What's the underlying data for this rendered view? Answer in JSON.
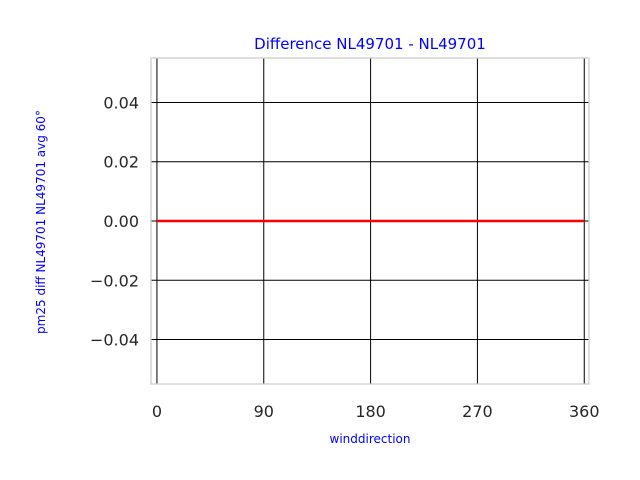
{
  "chart_data": {
    "type": "line",
    "title": "Difference NL49701 - NL49701",
    "xlabel": "winddirection",
    "ylabel": "pm25 diff NL49701 NL49701 avg 60°",
    "xlim": [
      -5,
      364
    ],
    "ylim": [
      -0.055,
      0.055
    ],
    "xticks": [
      0,
      90,
      180,
      270,
      360
    ],
    "xtick_labels": [
      "0",
      "90",
      "180",
      "270",
      "360"
    ],
    "yticks": [
      0.04,
      0.02,
      0.0,
      -0.02,
      -0.04
    ],
    "ytick_labels": [
      "0.04",
      "0.02",
      "0.00",
      "−0.02",
      "−0.04"
    ],
    "grid": true,
    "series": [
      {
        "color": "#ff0000",
        "x": [
          0,
          30,
          60,
          90,
          120,
          150,
          180,
          210,
          240,
          270,
          300,
          330,
          360
        ],
        "y": [
          0,
          0,
          0,
          0,
          0,
          0,
          0,
          0,
          0,
          0,
          0,
          0,
          0
        ]
      }
    ]
  }
}
